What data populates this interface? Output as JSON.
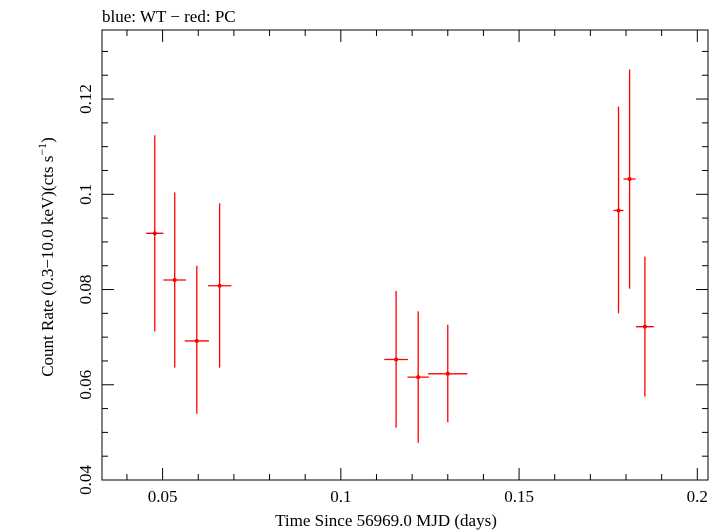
{
  "chart_data": {
    "type": "scatter",
    "title": "blue: WT − red: PC",
    "xlabel": "Time Since 56969.0 MJD (days)",
    "ylabel_main": "Count Rate (0.3−10.0 keV)(cts s",
    "ylabel_sup": "−1",
    "ylabel_end": ")",
    "xlim": [
      0.033,
      0.203
    ],
    "ylim": [
      0.04,
      0.1345
    ],
    "x_ticks": [
      0.05,
      0.1,
      0.15,
      0.2
    ],
    "x_tick_labels": [
      "0.05",
      "0.1",
      "0.15",
      "0.2"
    ],
    "y_ticks": [
      0.04,
      0.06,
      0.08,
      0.1,
      0.12
    ],
    "y_tick_labels": [
      "0.04",
      "0.06",
      "0.08",
      "0.1",
      "0.12"
    ],
    "grid": false,
    "series": [
      {
        "color": "#ff0000",
        "points": [
          {
            "x": 0.0478,
            "xerr": 0.0024,
            "y": 0.0918,
            "ylo": 0.0712,
            "yhi": 0.1124
          },
          {
            "x": 0.0534,
            "xerr": 0.0032,
            "y": 0.082,
            "ylo": 0.0636,
            "yhi": 0.1004
          },
          {
            "x": 0.0596,
            "xerr": 0.0034,
            "y": 0.0692,
            "ylo": 0.0539,
            "yhi": 0.085
          },
          {
            "x": 0.066,
            "xerr": 0.0033,
            "y": 0.0808,
            "ylo": 0.0636,
            "yhi": 0.0981
          },
          {
            "x": 0.1155,
            "xerr": 0.0033,
            "y": 0.0653,
            "ylo": 0.051,
            "yhi": 0.0797
          },
          {
            "x": 0.1217,
            "xerr": 0.003,
            "y": 0.0616,
            "ylo": 0.0478,
            "yhi": 0.0754
          },
          {
            "x": 0.13,
            "xerr": 0.0055,
            "y": 0.0623,
            "ylo": 0.0521,
            "yhi": 0.0726
          },
          {
            "x": 0.1779,
            "xerr": 0.0014,
            "y": 0.0966,
            "ylo": 0.075,
            "yhi": 0.1184
          },
          {
            "x": 0.181,
            "xerr": 0.0017,
            "y": 0.1032,
            "ylo": 0.0802,
            "yhi": 0.1262
          },
          {
            "x": 0.1853,
            "xerr": 0.0025,
            "y": 0.0722,
            "ylo": 0.0575,
            "yhi": 0.0869
          }
        ]
      }
    ]
  }
}
